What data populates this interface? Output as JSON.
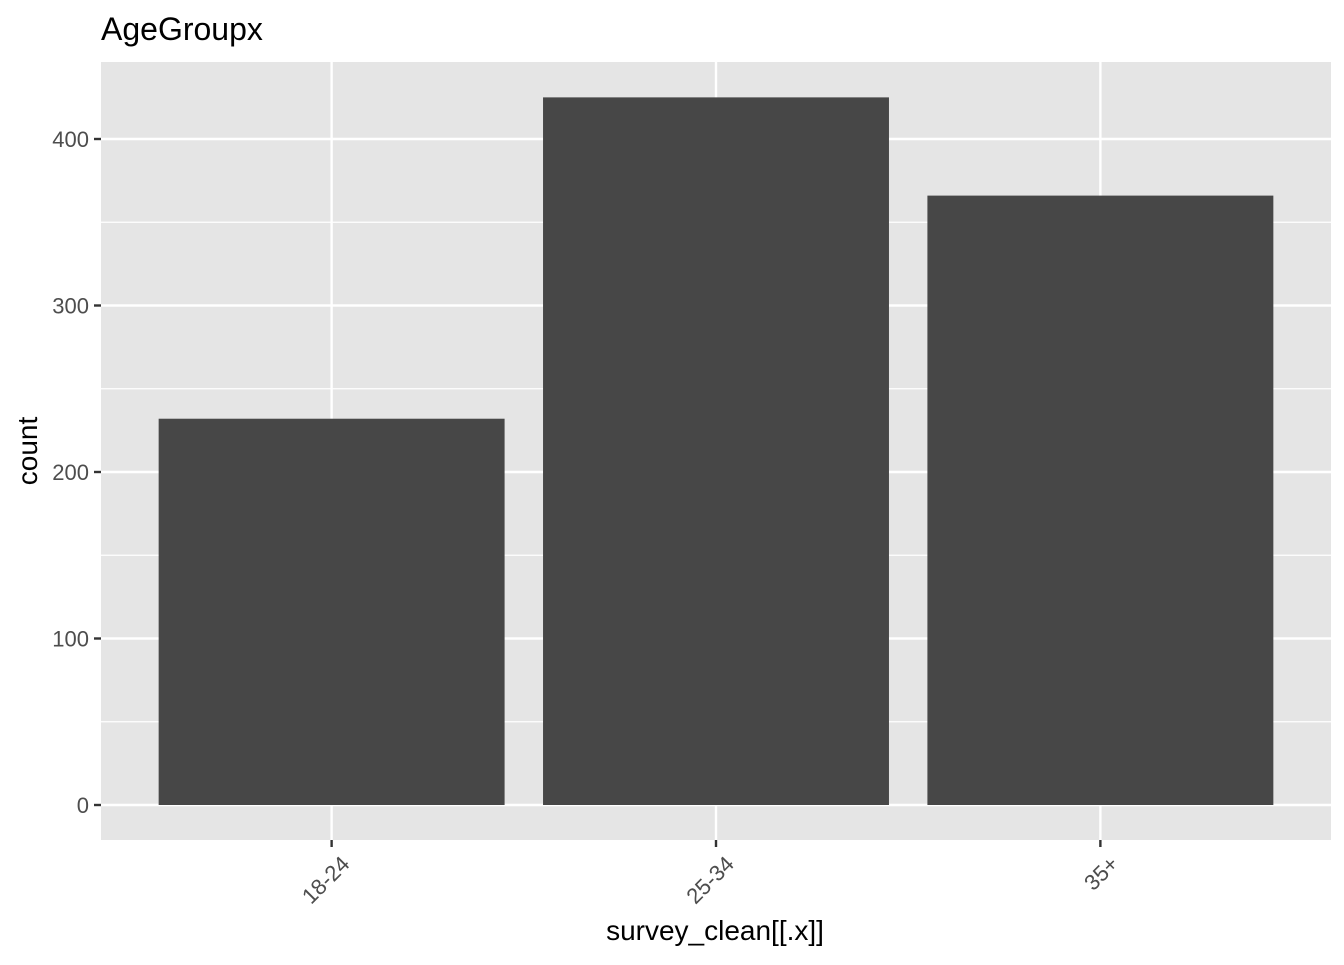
{
  "chart_data": {
    "type": "bar",
    "title": "AgeGroupx",
    "xlabel": "survey_clean[[.x]]",
    "ylabel": "count",
    "categories": [
      "18-24",
      "25-34",
      "35+"
    ],
    "values": [
      232,
      425,
      366
    ],
    "ylim": [
      0,
      445
    ],
    "yticks": [
      0,
      100,
      200,
      300,
      400
    ],
    "grid": true,
    "x_tick_rotation_deg": 45,
    "colors": {
      "bar": "#474747",
      "panel": "#e5e5e5",
      "grid": "#ffffff",
      "tick_text": "#4d4d4d"
    }
  }
}
